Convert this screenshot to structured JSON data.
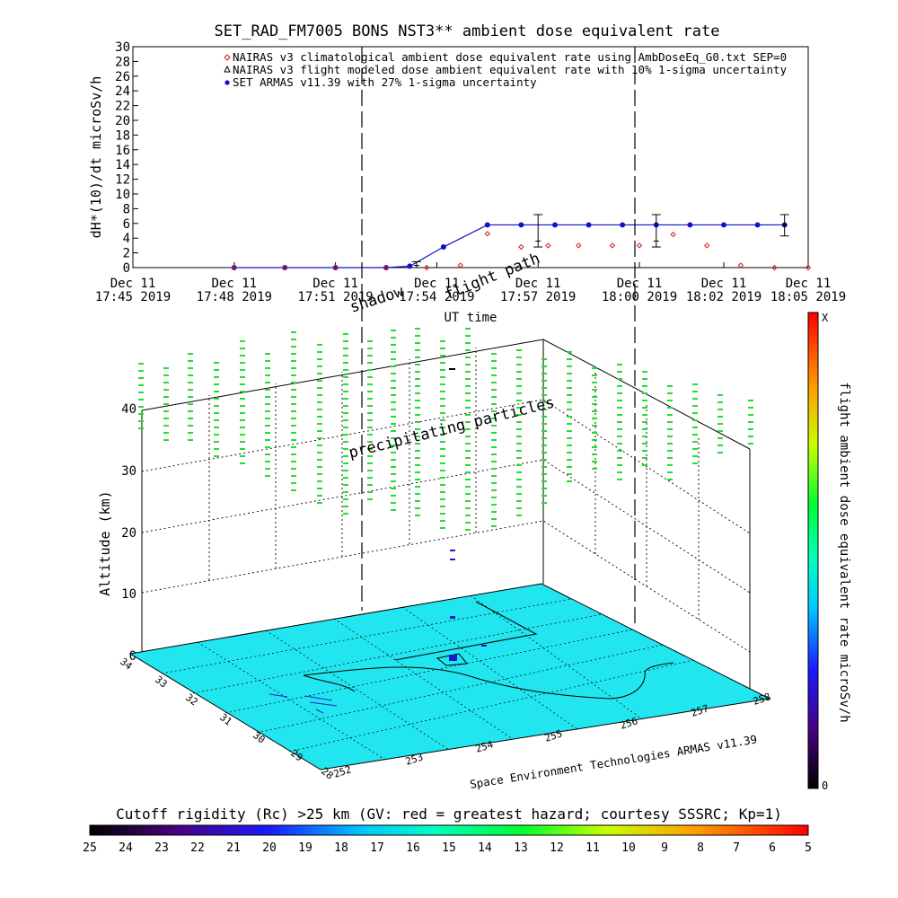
{
  "chart_data": [
    {
      "type": "line",
      "title": "SET_RAD_FM7005  BONS NST3** ambient dose equivalent rate",
      "ylabel": "dH*(10)/dt microSv/h",
      "xlabel": "UT time",
      "ylim": [
        0,
        30
      ],
      "yticks": [
        0,
        2,
        4,
        6,
        8,
        10,
        12,
        14,
        16,
        18,
        20,
        22,
        24,
        26,
        28,
        30
      ],
      "xlim_min": [
        0,
        20
      ],
      "xticks": [
        {
          "t": 0,
          "line1": "Dec 11",
          "line2": "17:45 2019"
        },
        {
          "t": 3,
          "line1": "Dec 11",
          "line2": "17:48 2019"
        },
        {
          "t": 6,
          "line1": "Dec 11",
          "line2": "17:51 2019"
        },
        {
          "t": 9,
          "line1": "Dec 11",
          "line2": "17:54 2019"
        },
        {
          "t": 12,
          "line1": "Dec 11",
          "line2": "17:57 2019"
        },
        {
          "t": 15,
          "line1": "Dec 11",
          "line2": "18:00 2019"
        },
        {
          "t": 17.5,
          "line1": "Dec 11",
          "line2": "18:02 2019"
        },
        {
          "t": 20,
          "line1": "Dec 11",
          "line2": "18:05 2019"
        }
      ],
      "legend": [
        {
          "marker": "diamond",
          "color": "#cc2222",
          "text": "NAIRAS v3 climatological ambient dose equivalent rate using AmbDoseEq_G0.txt SEP=0"
        },
        {
          "marker": "triangle",
          "color": "#000000",
          "text": "NAIRAS v3 flight modeled dose ambient equivalent rate with 10% 1-sigma uncertainty"
        },
        {
          "marker": "dot",
          "color": "#1010cc",
          "text": "SET ARMAS v11.39 with 27% 1-sigma uncertainty"
        }
      ],
      "series": [
        {
          "name": "SET ARMAS v11.39 with 27% 1-sigma uncertainty",
          "color": "#1010cc",
          "x": [
            3,
            4.5,
            6,
            7.5,
            8.2,
            9.2,
            10.5,
            11.5,
            12.5,
            13.5,
            14.5,
            15.5,
            16.5,
            17.5,
            18.5,
            19.3
          ],
          "y": [
            0,
            0,
            0,
            0,
            0.2,
            2.8,
            5.8,
            5.8,
            5.8,
            5.8,
            5.8,
            5.8,
            5.8,
            5.8,
            5.8,
            5.8
          ]
        },
        {
          "name": "NAIRAS v3 climatological ambient dose equivalent rate using AmbDoseEq_G0.txt SEP=0",
          "color": "#cc2222",
          "x": [
            3,
            4.5,
            6,
            7.5,
            8.7,
            9.7,
            10.5,
            11.5,
            12.3,
            13.2,
            14.2,
            15,
            16,
            17,
            18,
            19,
            20
          ],
          "y": [
            0,
            0,
            0,
            0,
            0,
            0.3,
            4.6,
            2.8,
            3,
            3,
            3,
            3,
            4.5,
            3,
            0.3,
            0,
            0
          ]
        }
      ],
      "error_bars": [
        {
          "x": 8.4,
          "y": 0.3,
          "lo": 0,
          "hi": 0.8
        },
        {
          "x": 12.0,
          "y": 3.6,
          "lo": 2.8,
          "hi": 7.2
        },
        {
          "x": 15.5,
          "y": 3.6,
          "lo": 2.8,
          "hi": 7.2
        },
        {
          "x": 19.3,
          "y": 5.8,
          "lo": 4.3,
          "hi": 7.2
        }
      ],
      "annotations": [
        "shadow",
        "flight path"
      ]
    },
    {
      "type": "scatter",
      "ylabel": "Altitude (km)",
      "zticks": [
        0,
        10,
        20,
        30,
        40
      ],
      "lat_ticks": [
        "34",
        "33",
        "32",
        "31",
        "30",
        "29",
        "28"
      ],
      "lon_ticks": [
        "252",
        "253",
        "254",
        "255",
        "256",
        "257",
        "258"
      ],
      "annotation": "precipitating particles",
      "credit": "Space Environment Technologies ARMAS v11.39",
      "colorbar": {
        "label": "flight ambient dose equivalent rate microSv/h",
        "top": "X",
        "bottom": "0"
      },
      "surface_color": "#22e6ef",
      "particle_color": "#22dd33"
    },
    {
      "type": "heatmap",
      "title": "Cutoff rigidity (Rc) >25 km (GV: red = greatest hazard; courtesy SSSRC; Kp=1)",
      "ticks": [
        "25",
        "24",
        "23",
        "22",
        "21",
        "20",
        "19",
        "18",
        "17",
        "16",
        "15",
        "14",
        "13",
        "12",
        "11",
        "10",
        "9",
        "8",
        "7",
        "6",
        "5"
      ]
    }
  ]
}
